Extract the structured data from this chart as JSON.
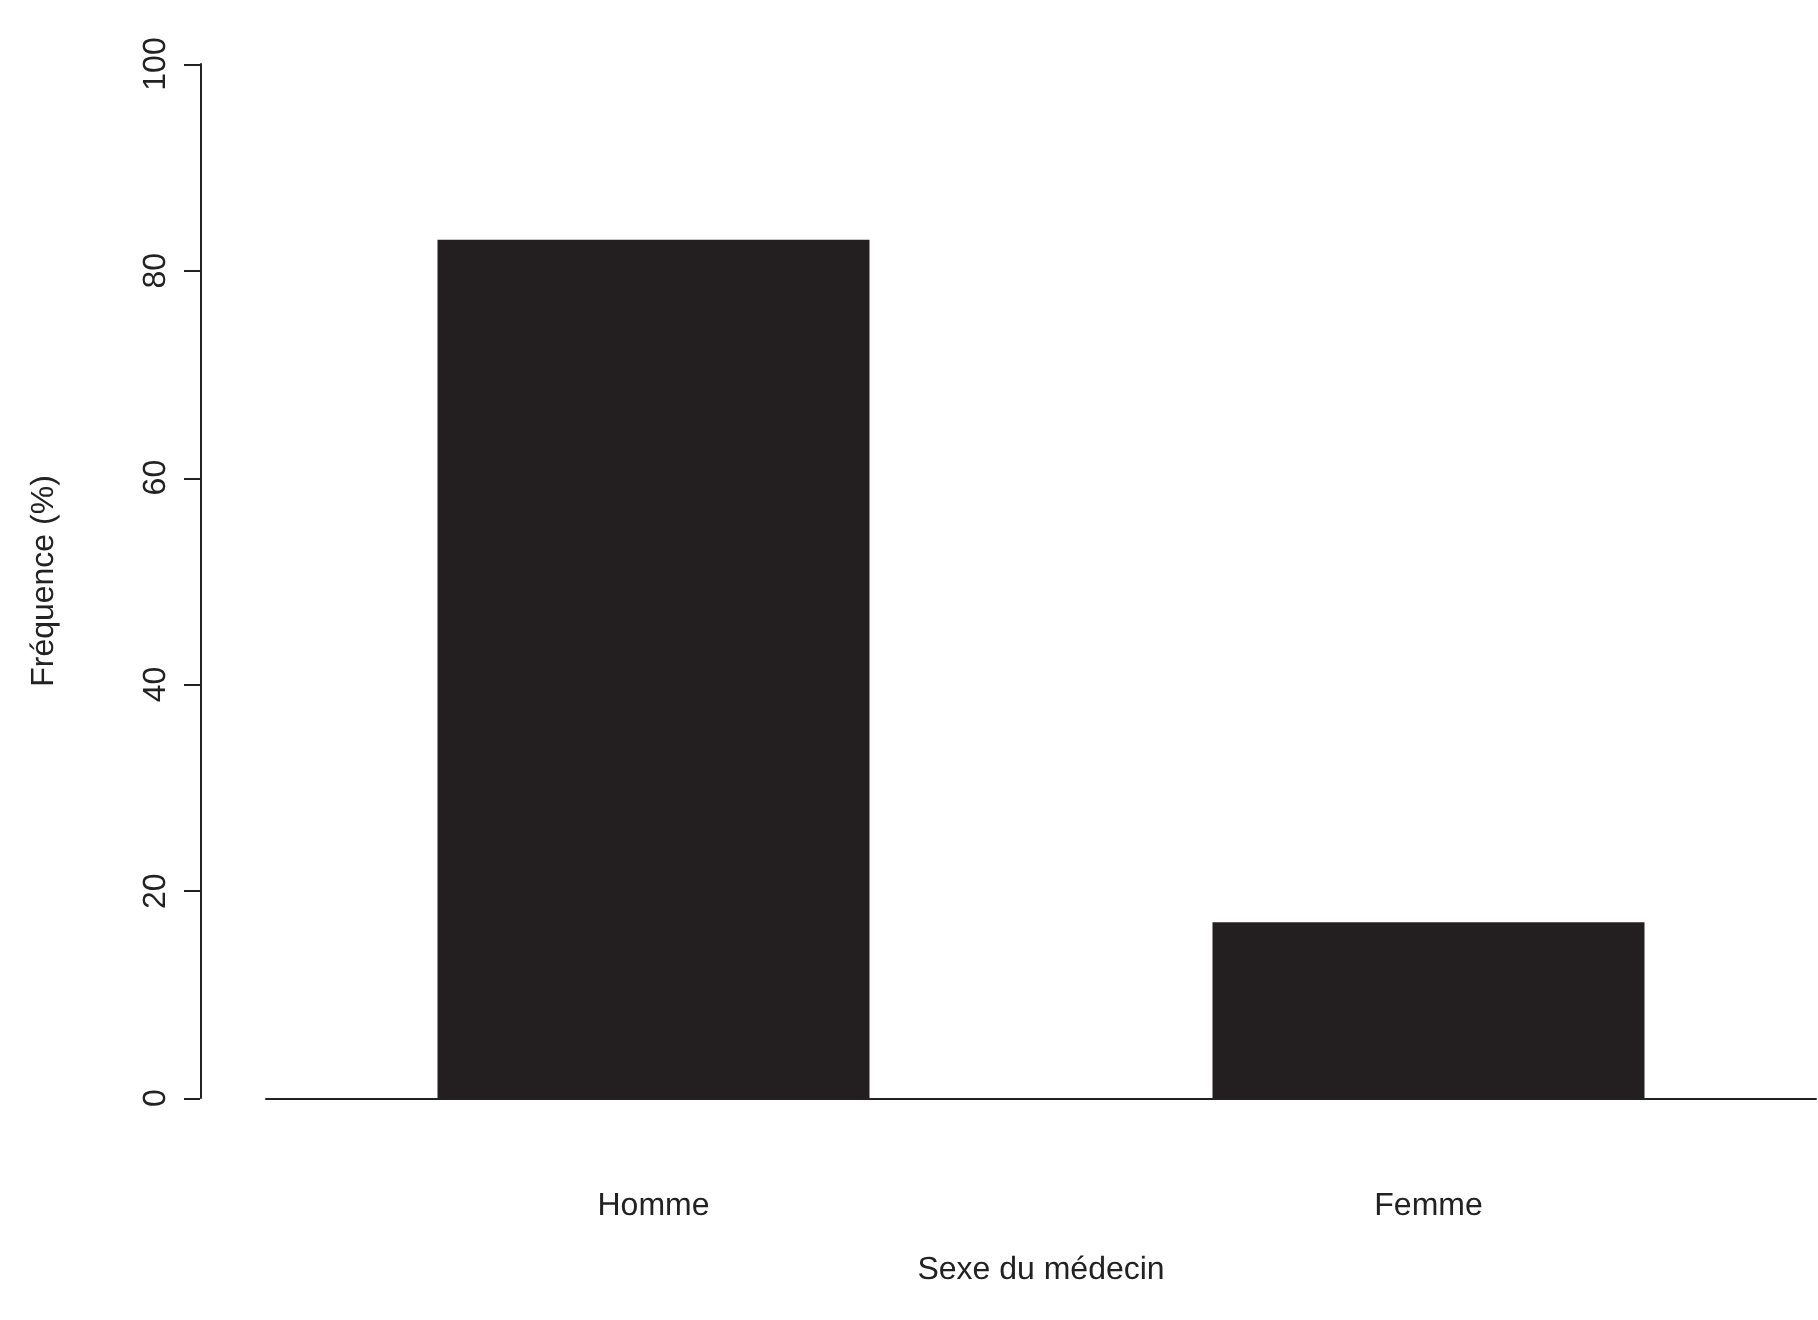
{
  "chart_data": {
    "type": "bar",
    "categories": [
      "Homme",
      "Femme"
    ],
    "values": [
      83,
      17
    ],
    "color": "#231f20",
    "xlabel": "Sexe du médecin",
    "ylabel": "Fréquence (%)",
    "ylim": [
      0,
      100
    ],
    "yticks": [
      0,
      20,
      40,
      60,
      80,
      100
    ],
    "grid": false
  }
}
